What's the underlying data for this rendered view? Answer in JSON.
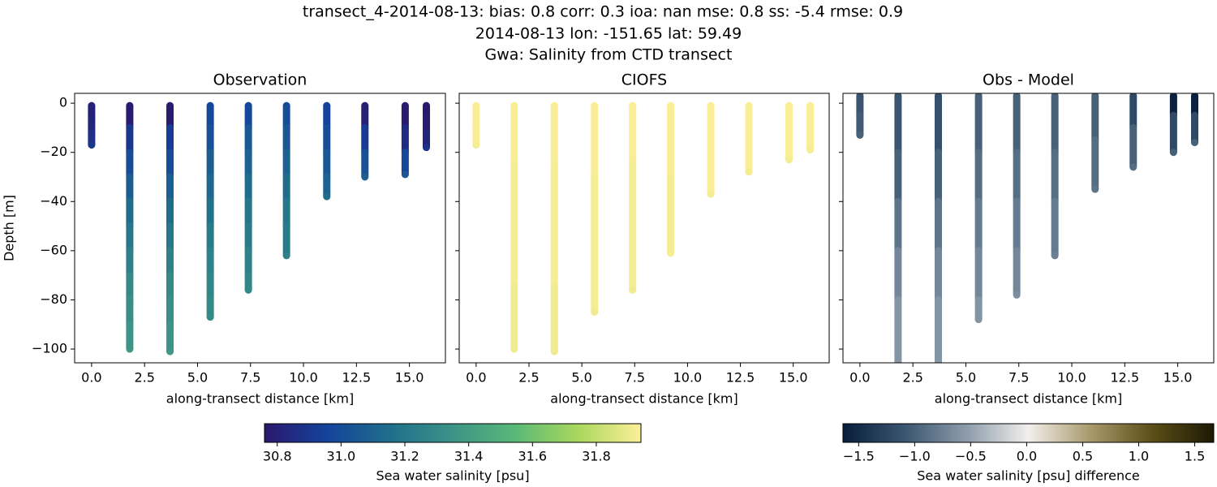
{
  "title": [
    "transect_4-2014-08-13: bias: 0.8  corr: 0.3  ioa: nan  mse: 0.8  ss: -5.4  rmse: 0.9",
    "2014-08-13 lon: -151.65 lat: 59.49",
    "Gwa: Salinity from CTD transect"
  ],
  "chart_data": [
    {
      "type": "scatter",
      "title": "Observation",
      "xlabel": "along-transect distance [km]",
      "ylabel": "Depth [m]",
      "colorbar": 0,
      "xlim": [
        -0.8,
        16.7
      ],
      "ylim": [
        -105.6,
        4
      ],
      "xticks": [
        {
          "value": 0,
          "label": "0.0"
        },
        2.5,
        {
          "value": 5,
          "label": "5.0"
        },
        7.5,
        {
          "value": 10,
          "label": "10.0"
        },
        12.5,
        {
          "value": 15,
          "label": "15.0"
        }
      ],
      "yticks": [
        0,
        {
          "value": -20,
          "label": "−20"
        },
        {
          "value": -40,
          "label": "−40"
        },
        {
          "value": -60,
          "label": "−60"
        },
        {
          "value": -80,
          "label": "−80"
        },
        {
          "value": -100,
          "label": "−100"
        }
      ],
      "ytick_labels": true,
      "casts": [
        {
          "x": 0.0,
          "y": [
            -1,
            -6,
            -12,
            -17
          ],
          "values": [
            30.8,
            30.82,
            30.87,
            30.9
          ]
        },
        {
          "x": 1.8,
          "y": [
            -1,
            -10,
            -20,
            -30,
            -40,
            -50,
            -60,
            -70,
            -80,
            -90,
            -100
          ],
          "values": [
            30.78,
            30.9,
            31.0,
            31.08,
            31.15,
            31.2,
            31.25,
            31.3,
            31.33,
            31.35,
            31.37
          ]
        },
        {
          "x": 3.7,
          "y": [
            -1,
            -10,
            -20,
            -30,
            -40,
            -50,
            -60,
            -70,
            -80,
            -90,
            -101
          ],
          "values": [
            30.78,
            30.92,
            31.0,
            31.08,
            31.15,
            31.2,
            31.25,
            31.3,
            31.33,
            31.35,
            31.37
          ]
        },
        {
          "x": 5.6,
          "y": [
            -1,
            -10,
            -20,
            -30,
            -40,
            -50,
            -60,
            -70,
            -80,
            -87
          ],
          "values": [
            30.98,
            31.02,
            31.08,
            31.12,
            31.17,
            31.22,
            31.26,
            31.28,
            31.3,
            31.31
          ]
        },
        {
          "x": 7.4,
          "y": [
            -1,
            -10,
            -20,
            -30,
            -40,
            -50,
            -60,
            -70,
            -76
          ],
          "values": [
            30.98,
            31.05,
            31.1,
            31.15,
            31.2,
            31.23,
            31.26,
            31.28,
            31.29
          ]
        },
        {
          "x": 9.2,
          "y": [
            -1,
            -10,
            -20,
            -30,
            -40,
            -50,
            -62
          ],
          "values": [
            31.0,
            31.05,
            31.1,
            31.15,
            31.2,
            31.22,
            31.25
          ]
        },
        {
          "x": 11.1,
          "y": [
            -1,
            -10,
            -20,
            -30,
            -38
          ],
          "values": [
            30.95,
            31.0,
            31.05,
            31.1,
            31.15
          ]
        },
        {
          "x": 12.9,
          "y": [
            -1,
            -10,
            -20,
            -30
          ],
          "values": [
            30.8,
            30.92,
            31.02,
            31.08
          ]
        },
        {
          "x": 14.8,
          "y": [
            -1,
            -10,
            -20,
            -29
          ],
          "values": [
            30.78,
            30.85,
            30.98,
            31.05
          ]
        },
        {
          "x": 15.8,
          "y": [
            -1,
            -6,
            -12,
            -18
          ],
          "values": [
            30.76,
            30.78,
            30.82,
            30.88
          ]
        }
      ]
    },
    {
      "type": "scatter",
      "title": "CIOFS",
      "xlabel": "along-transect distance [km]",
      "colorbar": 0,
      "xlim": [
        -0.8,
        16.7
      ],
      "ylim": [
        -105.6,
        4
      ],
      "xticks": [
        {
          "value": 0,
          "label": "0.0"
        },
        2.5,
        {
          "value": 5,
          "label": "5.0"
        },
        7.5,
        {
          "value": 10,
          "label": "10.0"
        },
        12.5,
        {
          "value": 15,
          "label": "15.0"
        }
      ],
      "yticks": [
        0,
        -20,
        -40,
        -60,
        -80,
        -100
      ],
      "ytick_labels": false,
      "casts": [
        {
          "x": 0.0,
          "y": [
            -1,
            -9,
            -17
          ],
          "values": [
            31.93,
            31.93,
            31.92
          ]
        },
        {
          "x": 1.8,
          "y": [
            -1,
            -25,
            -50,
            -75,
            -100
          ],
          "values": [
            31.93,
            31.92,
            31.92,
            31.91,
            31.91
          ]
        },
        {
          "x": 3.7,
          "y": [
            -1,
            -25,
            -50,
            -75,
            -101
          ],
          "values": [
            31.93,
            31.92,
            31.92,
            31.91,
            31.91
          ]
        },
        {
          "x": 5.6,
          "y": [
            -1,
            -30,
            -60,
            -85
          ],
          "values": [
            31.93,
            31.92,
            31.92,
            31.91
          ]
        },
        {
          "x": 7.4,
          "y": [
            -1,
            -25,
            -50,
            -76
          ],
          "values": [
            31.93,
            31.92,
            31.92,
            31.91
          ]
        },
        {
          "x": 9.2,
          "y": [
            -1,
            -30,
            -61
          ],
          "values": [
            31.93,
            31.92,
            31.92
          ]
        },
        {
          "x": 11.1,
          "y": [
            -1,
            -20,
            -37
          ],
          "values": [
            31.93,
            31.93,
            31.92
          ]
        },
        {
          "x": 12.9,
          "y": [
            -1,
            -15,
            -28
          ],
          "values": [
            31.93,
            31.93,
            31.92
          ]
        },
        {
          "x": 14.8,
          "y": [
            -1,
            -12,
            -23
          ],
          "values": [
            31.93,
            31.93,
            31.92
          ]
        },
        {
          "x": 15.8,
          "y": [
            -1,
            -10,
            -19
          ],
          "values": [
            31.93,
            31.93,
            31.92
          ]
        }
      ]
    },
    {
      "type": "scatter",
      "title": "Obs - Model",
      "xlabel": "along-transect distance [km]",
      "colorbar": 1,
      "xlim": [
        -0.8,
        16.7
      ],
      "ylim": [
        -105.6,
        4
      ],
      "xticks": [
        {
          "value": 0,
          "label": "0.0"
        },
        2.5,
        {
          "value": 5,
          "label": "5.0"
        },
        7.5,
        {
          "value": 10,
          "label": "10.0"
        },
        12.5,
        {
          "value": 15,
          "label": "15.0"
        }
      ],
      "yticks": [
        0,
        -20,
        -40,
        -60,
        -80,
        -100
      ],
      "ytick_labels": false,
      "casts": [
        {
          "x": 0.0,
          "y": [
            3,
            -5,
            -13
          ],
          "values": [
            -1.1,
            -1.05,
            -1.0
          ]
        },
        {
          "x": 1.8,
          "y": [
            3,
            -20,
            -40,
            -60,
            -80,
            -106
          ],
          "values": [
            -1.1,
            -1.0,
            -0.85,
            -0.7,
            -0.6,
            -0.55
          ]
        },
        {
          "x": 3.7,
          "y": [
            3,
            -20,
            -40,
            -60,
            -80,
            -106
          ],
          "values": [
            -1.15,
            -1.0,
            -0.85,
            -0.7,
            -0.6,
            -0.55
          ]
        },
        {
          "x": 5.6,
          "y": [
            3,
            -20,
            -40,
            -60,
            -80,
            -88
          ],
          "values": [
            -1.0,
            -0.9,
            -0.8,
            -0.7,
            -0.6,
            -0.6
          ]
        },
        {
          "x": 7.4,
          "y": [
            3,
            -20,
            -40,
            -60,
            -78
          ],
          "values": [
            -1.0,
            -0.9,
            -0.8,
            -0.7,
            -0.65
          ]
        },
        {
          "x": 9.2,
          "y": [
            3,
            -20,
            -40,
            -62
          ],
          "values": [
            -1.0,
            -0.9,
            -0.8,
            -0.75
          ]
        },
        {
          "x": 11.1,
          "y": [
            3,
            -15,
            -35
          ],
          "values": [
            -1.0,
            -0.9,
            -0.85
          ]
        },
        {
          "x": 12.9,
          "y": [
            3,
            -10,
            -26
          ],
          "values": [
            -1.2,
            -1.0,
            -0.9
          ]
        },
        {
          "x": 14.8,
          "y": [
            3,
            -5,
            -20
          ],
          "values": [
            -1.6,
            -1.2,
            -1.0
          ]
        },
        {
          "x": 15.8,
          "y": [
            3,
            -5,
            -16
          ],
          "values": [
            -1.6,
            -1.2,
            -1.0
          ]
        }
      ]
    }
  ],
  "colorbars": [
    {
      "label": "Sea water salinity [psu]",
      "clim": [
        30.76,
        31.94
      ],
      "colors": [
        "#2a186c",
        "#14439c",
        "#206e8b",
        "#3c9387",
        "#5ab978",
        "#aad85c",
        "#fdef9a"
      ],
      "ticks": [
        30.8,
        {
          "value": 31.0,
          "label": "31.0"
        },
        31.2,
        31.4,
        31.6,
        31.8
      ]
    },
    {
      "label": "Sea water salinity [psu] difference",
      "clim": [
        -1.64,
        1.67
      ],
      "colors": [
        "#081d3a",
        "#3a5670",
        "#8d9cab",
        "#f2efec",
        "#a89a6c",
        "#5c4e17",
        "#1c1a04"
      ],
      "ticks": [
        {
          "value": -1.5,
          "label": "−1.5"
        },
        {
          "value": -1.0,
          "label": "−1.0"
        },
        {
          "value": -0.5,
          "label": "−0.5"
        },
        {
          "value": 0.0,
          "label": "0.0"
        },
        0.5,
        {
          "value": 1.0,
          "label": "1.0"
        },
        1.5
      ]
    }
  ]
}
